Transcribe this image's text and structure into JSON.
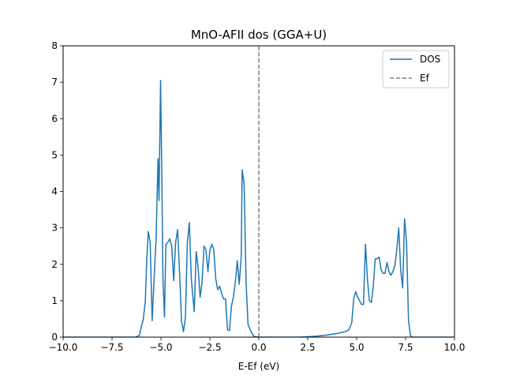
{
  "chart_data": {
    "type": "line",
    "title": "MnO-AFII dos (GGA+U)",
    "xlabel": "E-Ef (eV)",
    "ylabel": "",
    "xlim": [
      -10.0,
      10.0
    ],
    "ylim": [
      0,
      8
    ],
    "x_ticks": [
      -10.0,
      -7.5,
      -5.0,
      -2.5,
      0.0,
      2.5,
      5.0,
      7.5,
      10.0
    ],
    "x_tick_labels": [
      "−10.0",
      "−7.5",
      "−5.0",
      "−2.5",
      "0.0",
      "2.5",
      "5.0",
      "7.5",
      "10.0"
    ],
    "y_ticks": [
      0,
      1,
      2,
      3,
      4,
      5,
      6,
      7,
      8
    ],
    "y_tick_labels": [
      "0",
      "1",
      "2",
      "3",
      "4",
      "5",
      "6",
      "7",
      "8"
    ],
    "grid": false,
    "legend_position": "top-right",
    "legend": [
      "DOS",
      "Ef"
    ],
    "series": [
      {
        "name": "DOS",
        "color": "#1f77b4",
        "style": "solid",
        "points": [
          [
            -10.0,
            0
          ],
          [
            -6.3,
            0
          ],
          [
            -6.1,
            0.05
          ],
          [
            -6.0,
            0.3
          ],
          [
            -5.9,
            0.5
          ],
          [
            -5.8,
            1.0
          ],
          [
            -5.72,
            2.2
          ],
          [
            -5.65,
            2.9
          ],
          [
            -5.55,
            2.6
          ],
          [
            -5.45,
            0.45
          ],
          [
            -5.35,
            1.6
          ],
          [
            -5.25,
            2.7
          ],
          [
            -5.15,
            4.9
          ],
          [
            -5.1,
            3.75
          ],
          [
            -5.02,
            7.05
          ],
          [
            -4.95,
            4.2
          ],
          [
            -4.9,
            1.6
          ],
          [
            -4.82,
            0.55
          ],
          [
            -4.75,
            2.55
          ],
          [
            -4.65,
            2.6
          ],
          [
            -4.55,
            2.7
          ],
          [
            -4.45,
            2.5
          ],
          [
            -4.35,
            1.55
          ],
          [
            -4.25,
            2.6
          ],
          [
            -4.15,
            2.95
          ],
          [
            -4.05,
            1.8
          ],
          [
            -3.95,
            0.45
          ],
          [
            -3.85,
            0.15
          ],
          [
            -3.75,
            0.55
          ],
          [
            -3.65,
            2.6
          ],
          [
            -3.55,
            3.15
          ],
          [
            -3.45,
            1.6
          ],
          [
            -3.3,
            0.7
          ],
          [
            -3.2,
            2.35
          ],
          [
            -3.1,
            1.9
          ],
          [
            -3.0,
            1.1
          ],
          [
            -2.9,
            1.5
          ],
          [
            -2.8,
            2.5
          ],
          [
            -2.7,
            2.4
          ],
          [
            -2.6,
            1.8
          ],
          [
            -2.5,
            2.4
          ],
          [
            -2.4,
            2.55
          ],
          [
            -2.3,
            2.4
          ],
          [
            -2.2,
            1.6
          ],
          [
            -2.1,
            1.3
          ],
          [
            -2.0,
            1.4
          ],
          [
            -1.9,
            1.2
          ],
          [
            -1.8,
            1.05
          ],
          [
            -1.7,
            1.05
          ],
          [
            -1.6,
            0.2
          ],
          [
            -1.5,
            0.18
          ],
          [
            -1.4,
            0.85
          ],
          [
            -1.3,
            1.1
          ],
          [
            -1.2,
            1.5
          ],
          [
            -1.1,
            2.1
          ],
          [
            -1.0,
            1.45
          ],
          [
            -0.9,
            2.2
          ],
          [
            -0.85,
            4.6
          ],
          [
            -0.75,
            4.2
          ],
          [
            -0.65,
            1.5
          ],
          [
            -0.55,
            0.35
          ],
          [
            -0.4,
            0.15
          ],
          [
            -0.25,
            0.02
          ],
          [
            0.0,
            0
          ],
          [
            2.0,
            0
          ],
          [
            2.5,
            0.01
          ],
          [
            3.0,
            0.03
          ],
          [
            3.5,
            0.06
          ],
          [
            4.0,
            0.1
          ],
          [
            4.4,
            0.15
          ],
          [
            4.6,
            0.2
          ],
          [
            4.75,
            0.4
          ],
          [
            4.85,
            1.05
          ],
          [
            4.95,
            1.25
          ],
          [
            5.05,
            1.1
          ],
          [
            5.15,
            1.0
          ],
          [
            5.25,
            0.9
          ],
          [
            5.35,
            0.9
          ],
          [
            5.45,
            2.55
          ],
          [
            5.55,
            1.6
          ],
          [
            5.65,
            1.0
          ],
          [
            5.75,
            0.95
          ],
          [
            5.85,
            1.4
          ],
          [
            5.95,
            2.15
          ],
          [
            6.05,
            2.15
          ],
          [
            6.15,
            2.2
          ],
          [
            6.25,
            1.85
          ],
          [
            6.35,
            1.75
          ],
          [
            6.45,
            1.75
          ],
          [
            6.55,
            2.05
          ],
          [
            6.65,
            1.8
          ],
          [
            6.75,
            1.7
          ],
          [
            6.85,
            1.8
          ],
          [
            6.95,
            1.95
          ],
          [
            7.05,
            2.4
          ],
          [
            7.15,
            3.0
          ],
          [
            7.25,
            1.85
          ],
          [
            7.35,
            1.35
          ],
          [
            7.45,
            3.25
          ],
          [
            7.55,
            2.6
          ],
          [
            7.65,
            0.45
          ],
          [
            7.75,
            0.05
          ],
          [
            7.85,
            0
          ],
          [
            10.0,
            0
          ]
        ]
      },
      {
        "name": "Ef",
        "color": "#808080",
        "style": "dashed",
        "vertical_x": 0.0
      }
    ]
  }
}
